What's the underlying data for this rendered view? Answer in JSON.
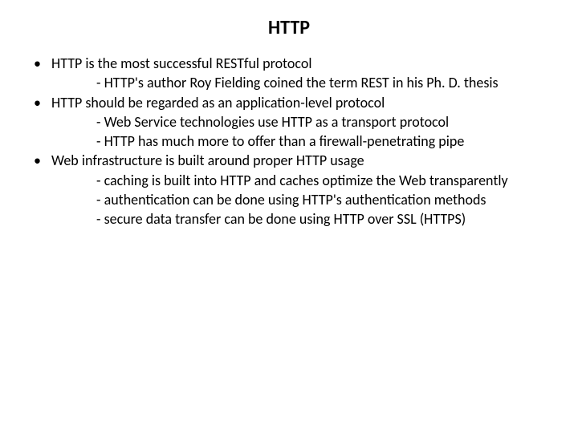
{
  "slide": {
    "title": "HTTP",
    "title_fontsize": 24,
    "body_fontsize": 18,
    "text_color": "#000000",
    "background_color": "#ffffff",
    "bullets": [
      {
        "text": "HTTP is the most successful RESTful protocol",
        "subs": [
          "- HTTP's author Roy Fielding coined the term REST in his Ph. D. thesis"
        ]
      },
      {
        "text": "HTTP should be regarded as an application-level protocol",
        "subs": [
          "- Web Service technologies use HTTP as a transport protocol",
          "- HTTP has much more to offer than a firewall-penetrating pipe"
        ]
      },
      {
        "text": "Web infrastructure is built around proper HTTP usage",
        "subs": [
          "- caching is built into HTTP and caches optimize the Web transparently",
          "- authentication can be done using HTTP's authentication methods",
          "- secure data transfer can be done using HTTP over SSL (HTTPS)"
        ]
      }
    ]
  }
}
